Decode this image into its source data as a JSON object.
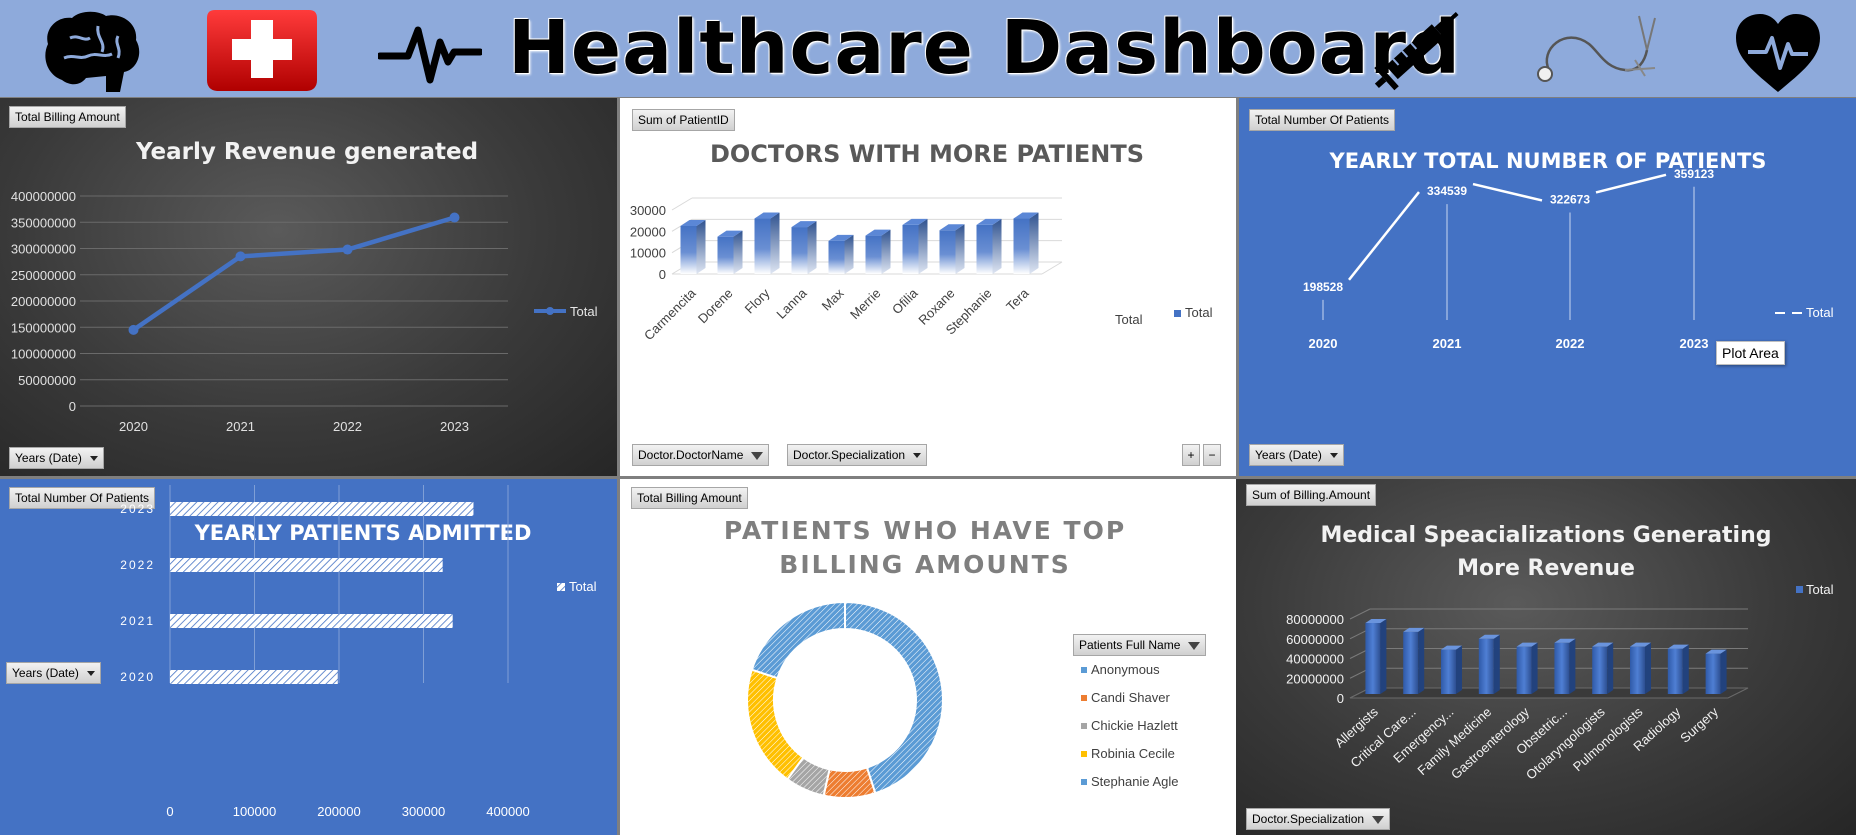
{
  "dashboard": {
    "title": "Healthcare Dashboard"
  },
  "panels": {
    "revenue": {
      "field_button": "Total Billing Amount",
      "filter_button": "Years (Date)"
    },
    "doctors": {
      "field_button": "Sum of PatientID",
      "filter_doctor": "Doctor.DoctorName",
      "filter_spec": "Doctor.Specialization",
      "plus": "+",
      "minus": "−"
    },
    "yearly_patients": {
      "field_button": "Total Number Of Patients",
      "filter_button": "Years (Date)",
      "tooltip": "Plot Area"
    },
    "admitted": {
      "field_button": "Total Number Of Patients",
      "filter_button": "Years (Date)"
    },
    "top_billing": {
      "field_button": "Total Billing Amount",
      "legend_field": "Patients Full Name"
    },
    "specializations": {
      "field_button": "Sum of Billing.Amount",
      "filter_button": "Doctor.Specialization"
    }
  },
  "chart_data": [
    {
      "id": "revenue",
      "type": "line",
      "title": "Yearly Revenue generated",
      "categories": [
        "2020",
        "2021",
        "2022",
        "2023"
      ],
      "series": [
        {
          "name": "Total",
          "values": [
            145000000,
            285000000,
            298000000,
            359000000
          ]
        }
      ],
      "ylim": [
        0,
        400000000
      ],
      "yticks": [
        0,
        50000000,
        100000000,
        150000000,
        200000000,
        250000000,
        300000000,
        350000000,
        400000000
      ],
      "legend": "right",
      "grid": true,
      "colors": {
        "line": "#4472c4"
      }
    },
    {
      "id": "doctors",
      "type": "bar",
      "title": "DOCTORS WITH MORE PATIENTS",
      "categories": [
        "Carmencita",
        "Dorene",
        "Flory",
        "Lanna",
        "Max",
        "Merrie",
        "Ofilia",
        "Roxane",
        "Stephanie",
        "Tera"
      ],
      "series": [
        {
          "name": "Total",
          "values": [
            22500,
            17500,
            26000,
            22000,
            15500,
            18000,
            23000,
            20500,
            23000,
            26000
          ]
        }
      ],
      "ylim": [
        0,
        30000
      ],
      "yticks": [
        0,
        10000,
        20000,
        30000
      ],
      "depth_label": "Total",
      "legend": "right",
      "colors": {
        "bar": "#4472c4"
      }
    },
    {
      "id": "yearly_patients",
      "type": "line",
      "title": "YEARLY TOTAL NUMBER OF PATIENTS",
      "categories": [
        "2020",
        "2021",
        "2022",
        "2023"
      ],
      "series": [
        {
          "name": "Total",
          "values": [
            198528,
            334539,
            322673,
            359123
          ]
        }
      ],
      "legend": "right",
      "colors": {
        "line": "#ffffff"
      }
    },
    {
      "id": "admitted",
      "type": "bar",
      "orientation": "horizontal",
      "title": "YEARLY PATIENTS ADMITTED",
      "categories": [
        "2023",
        "2022",
        "2021",
        "2020"
      ],
      "series": [
        {
          "name": "Total",
          "values": [
            359123,
            322673,
            334539,
            198528
          ]
        }
      ],
      "xlim": [
        0,
        400000
      ],
      "xticks": [
        0,
        100000,
        200000,
        300000,
        400000
      ],
      "legend": "right",
      "grid": true,
      "colors": {
        "bar": "#ffffff"
      }
    },
    {
      "id": "top_billing",
      "type": "pie",
      "variant": "doughnut",
      "title": "PATIENTS WHO HAVE TOP BILLING AMOUNTS",
      "title_lines": [
        "PATIENTS WHO HAVE TOP",
        "BILLING AMOUNTS"
      ],
      "labels": [
        "Anonymous",
        "Candi Shaver",
        "Chickie Hazlett",
        "Robinia Cecile",
        "Stephanie Agle"
      ],
      "values": [
        0.45,
        0.085,
        0.065,
        0.2,
        0.2
      ],
      "colors": [
        "#5b9bd5",
        "#ed7d31",
        "#a5a5a5",
        "#ffc000",
        "#5b9bd5"
      ],
      "legend": "right"
    },
    {
      "id": "specializations",
      "type": "bar",
      "title": "Medical Speacializations Generating More Revenue",
      "title_lines": [
        "Medical Speacializations Generating",
        "More Revenue"
      ],
      "categories": [
        "Allergists",
        "Critical Care...",
        "Emergency...",
        "Family Medicine",
        "Gastroenterology",
        "Obstetric...",
        "Otolaryngologists",
        "Pulmonologists",
        "Radiology",
        "Surgery"
      ],
      "series": [
        {
          "name": "Total",
          "values": [
            76000000,
            67000000,
            49000000,
            60000000,
            52000000,
            56000000,
            52000000,
            52000000,
            50000000,
            45000000
          ]
        }
      ],
      "ylim": [
        0,
        80000000
      ],
      "yticks": [
        0,
        20000000,
        40000000,
        60000000,
        80000000
      ],
      "legend": "right",
      "colors": {
        "bar": "#4472c4"
      }
    }
  ]
}
